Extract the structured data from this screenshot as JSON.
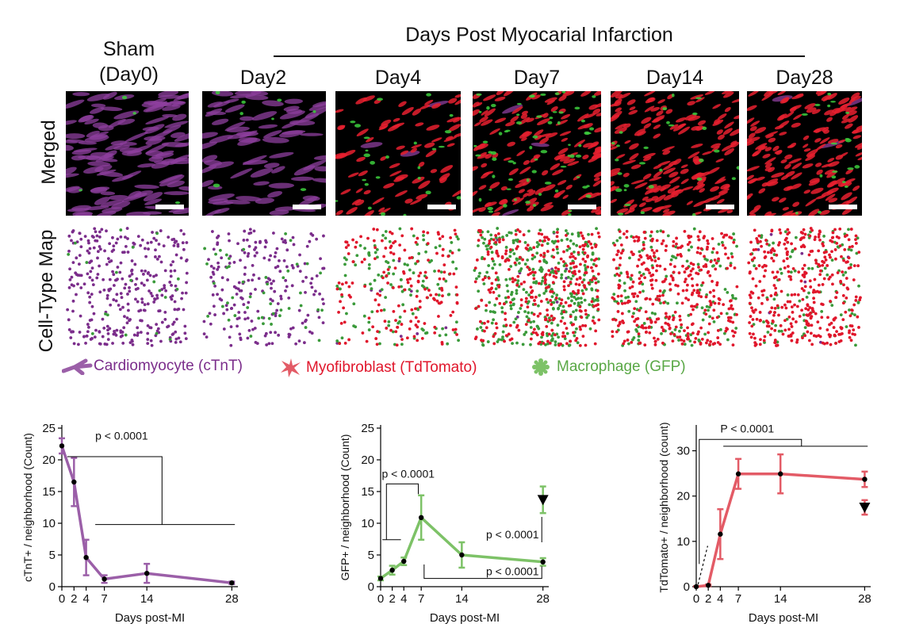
{
  "header": {
    "group_title": "Days Post Myocarial Infarction",
    "sham_line1": "Sham",
    "sham_line2": "(Day0)",
    "columns": [
      "Day2",
      "Day4",
      "Day7",
      "Day14",
      "Day28"
    ]
  },
  "rows": {
    "merged_label": "Merged",
    "map_label": "Cell-Type Map"
  },
  "legend": {
    "cardiomyocyte": "Cardiomyocyte (cTnT)",
    "myofibroblast": "Myofibroblast (TdTomato)",
    "macrophage": "Macrophage (GFP)"
  },
  "colors": {
    "cardiomyocyte": "#7b2d8b",
    "myofibroblast": "#e0162b",
    "macrophage": "#3a9a3a",
    "ctnt_line": "#9b5fa8",
    "gfp_line": "#7dc267",
    "tdt_line": "#e35b66"
  },
  "cell_density": [
    {
      "panel": "Sham (Day0)",
      "cardiomyocyte": 0.9,
      "myofibroblast": 0.0,
      "macrophage": 0.05
    },
    {
      "panel": "Day2",
      "cardiomyocyte": 0.55,
      "myofibroblast": 0.0,
      "macrophage": 0.12
    },
    {
      "panel": "Day4",
      "cardiomyocyte": 0.02,
      "myofibroblast": 0.45,
      "macrophage": 0.35
    },
    {
      "panel": "Day7",
      "cardiomyocyte": 0.02,
      "myofibroblast": 0.85,
      "macrophage": 0.95
    },
    {
      "panel": "Day14",
      "cardiomyocyte": 0.0,
      "myofibroblast": 1.0,
      "macrophage": 0.4
    },
    {
      "panel": "Day28",
      "cardiomyocyte": 0.02,
      "myofibroblast": 1.0,
      "macrophage": 0.25
    }
  ],
  "chart_data": [
    {
      "type": "line",
      "xlabel": "Days post-MI",
      "ylabel": "cTnT+ / neighborhood (Count)",
      "xlim": [
        0,
        29
      ],
      "ylim": [
        0,
        25
      ],
      "xticks": [
        0,
        2,
        4,
        7,
        14,
        28
      ],
      "yticks": [
        0,
        5,
        10,
        15,
        20,
        25
      ],
      "series": [
        {
          "x": [
            0,
            2,
            4,
            7,
            14,
            28
          ],
          "y": [
            22.2,
            16.5,
            4.6,
            1.2,
            2.1,
            0.6
          ],
          "err": [
            1.2,
            3.8,
            2.8,
            0.6,
            1.5,
            0.2
          ]
        }
      ],
      "annotations": [
        {
          "text": "p < 0.0001"
        }
      ]
    },
    {
      "type": "line",
      "xlabel": "Days post-MI",
      "ylabel": "GFP+ / neighborhood (Count)",
      "xlim": [
        0,
        29
      ],
      "ylim": [
        0,
        25
      ],
      "xticks": [
        0,
        2,
        4,
        7,
        14,
        28
      ],
      "yticks": [
        0,
        5,
        10,
        15,
        20,
        25
      ],
      "series": [
        {
          "x": [
            0,
            2,
            4,
            7,
            14,
            28
          ],
          "y": [
            1.3,
            2.6,
            4.0,
            10.9,
            5.0,
            3.9
          ],
          "err": [
            0.3,
            0.7,
            0.6,
            3.5,
            2.0,
            0.6
          ]
        }
      ],
      "markers": [
        {
          "x": 28,
          "y": 13.7,
          "err": 2.1
        }
      ],
      "annotations": [
        {
          "text": "p < 0.0001"
        },
        {
          "text": "p < 0.0001"
        },
        {
          "text": "p < 0.0001"
        }
      ]
    },
    {
      "type": "line",
      "xlabel": "Days post-MI",
      "ylabel": "TdTomato+ / neighborhood (count)",
      "xlim": [
        0,
        29
      ],
      "ylim": [
        0,
        35
      ],
      "xticks": [
        0,
        2,
        4,
        7,
        14,
        28
      ],
      "yticks": [
        0,
        10,
        20,
        30
      ],
      "series": [
        {
          "x": [
            0,
            2,
            4,
            7,
            14,
            28
          ],
          "y": [
            0,
            0.3,
            11.6,
            24.9,
            24.9,
            23.7
          ],
          "err": [
            0.1,
            0.2,
            5.5,
            3.3,
            4.3,
            1.7
          ]
        }
      ],
      "markers": [
        {
          "x": 28,
          "y": 17.5,
          "err": 1.6
        }
      ],
      "annotations": [
        {
          "text": "P < 0.0001"
        }
      ]
    }
  ]
}
